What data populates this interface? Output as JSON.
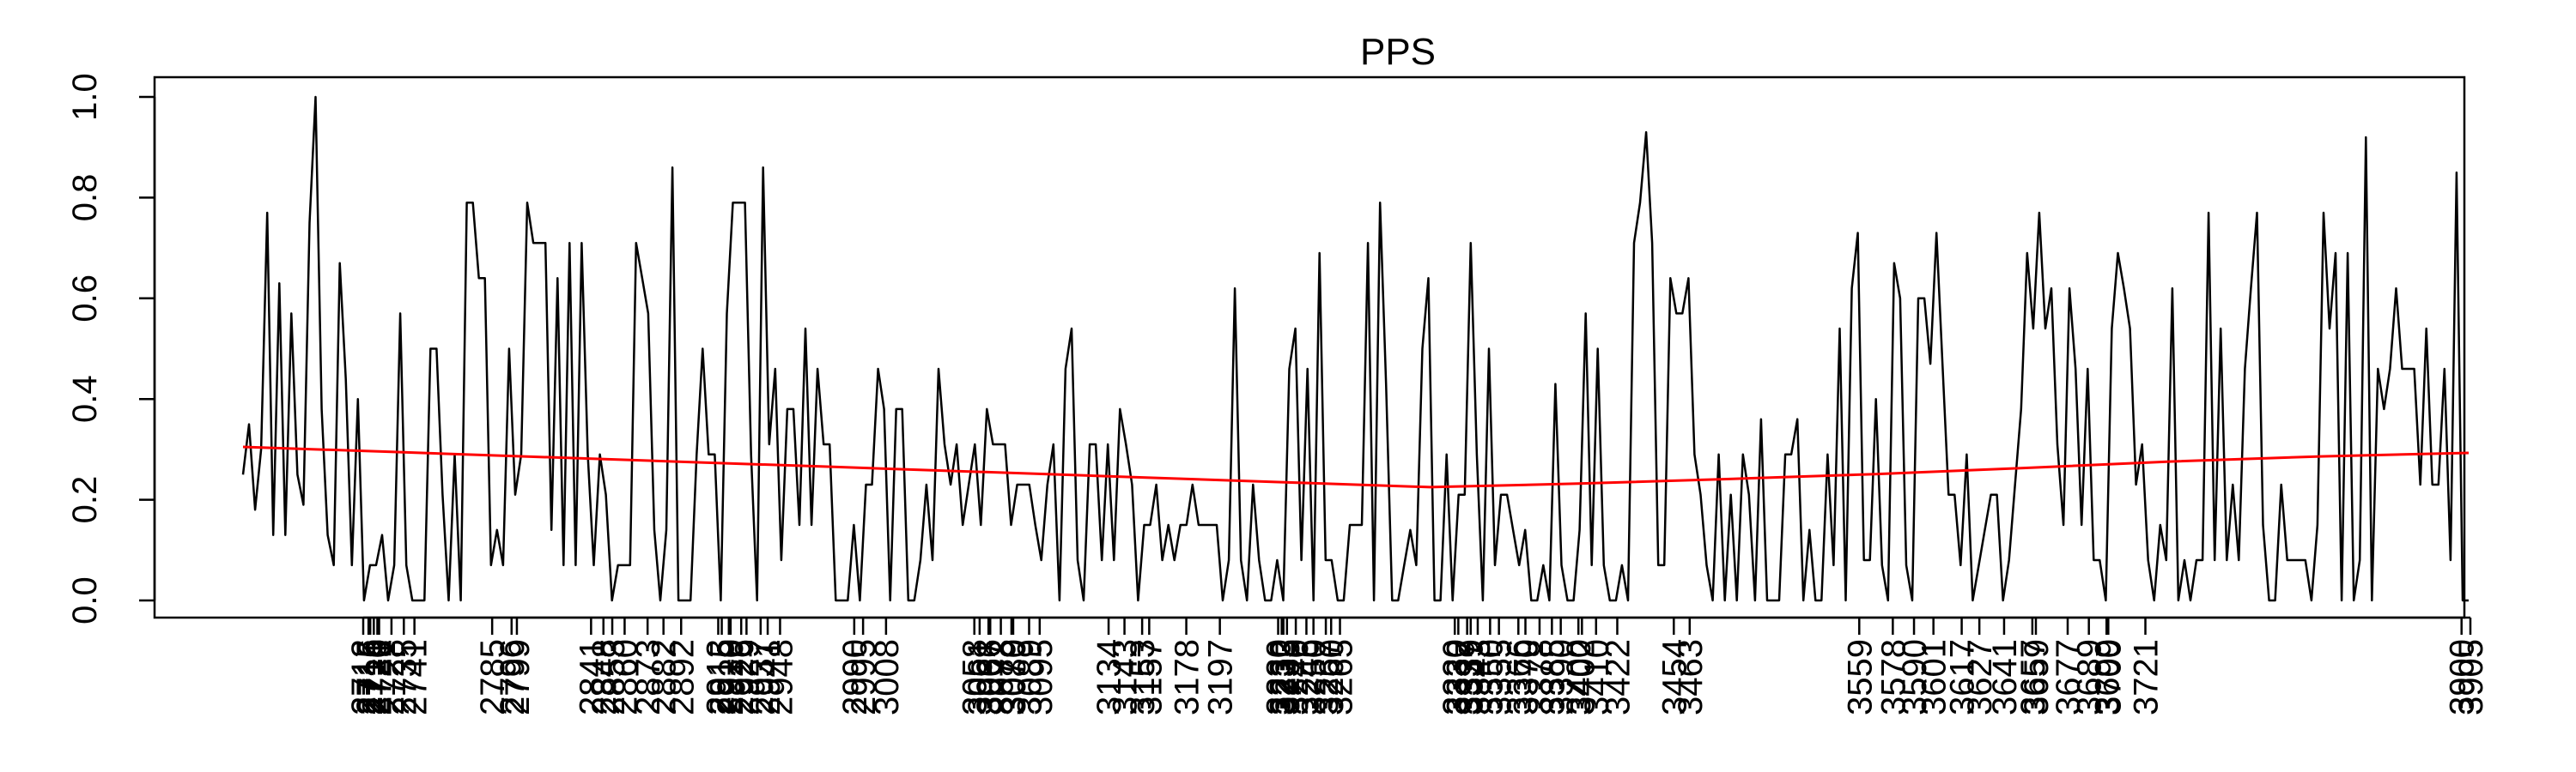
{
  "chart_data": {
    "type": "line",
    "title": "PPS",
    "xlabel": "",
    "ylabel": "",
    "ylim": [
      0,
      1
    ],
    "y_ticks": [
      "0.0",
      "0.2",
      "0.4",
      "0.6",
      "0.8",
      "1.0"
    ],
    "grid": false,
    "legend": "none",
    "colors": {
      "series": "#000000",
      "trend": "#ff0000"
    },
    "x_tick_labels": [
      "2712",
      "2715",
      "2716",
      "2718",
      "2720",
      "2721",
      "2728",
      "2735",
      "2741",
      "2785",
      "2796",
      "2799",
      "2841",
      "2848",
      "2853",
      "2860",
      "2873",
      "2882",
      "2892",
      "2913",
      "2915",
      "2919",
      "2920",
      "2926",
      "2929",
      "2937",
      "2941",
      "2948",
      "2990",
      "2995",
      "3008",
      "3058",
      "3061",
      "3066",
      "3067",
      "3073",
      "3079",
      "3080",
      "3089",
      "3095",
      "3134",
      "3143",
      "3153",
      "3157",
      "3178",
      "3197",
      "3230",
      "3232",
      "3233",
      "3235",
      "3240",
      "3246",
      "3250",
      "3257",
      "3260",
      "3265",
      "3330",
      "3332",
      "3337",
      "3339",
      "3343",
      "3350",
      "3355",
      "3366",
      "3370",
      "3378",
      "3385",
      "3390",
      "3400",
      "3402",
      "3410",
      "3422",
      "3454",
      "3463",
      "3559",
      "3578",
      "3590",
      "3601",
      "3617",
      "3627",
      "3641",
      "3657",
      "3659",
      "3677",
      "3689",
      "3699",
      "3700",
      "3721",
      "3900",
      "3905"
    ],
    "series": [
      {
        "values": [
          0.25,
          0.35,
          0.18,
          0.3,
          0.77,
          0.13,
          0.63,
          0.13,
          0.57,
          0.25,
          0.19,
          0.75,
          1.0,
          0.38,
          0.13,
          0.07,
          0.67,
          0.44,
          0.07,
          0.4,
          0.0,
          0.07,
          0.07,
          0.13,
          0.0,
          0.07,
          0.57,
          0.07,
          0.0,
          0.0,
          0.0,
          0.5,
          0.5,
          0.21,
          0.0,
          0.29,
          0.0,
          0.79,
          0.79,
          0.64,
          0.64,
          0.07,
          0.14,
          0.07,
          0.5,
          0.21,
          0.29,
          0.79,
          0.71,
          0.71,
          0.71,
          0.14,
          0.64,
          0.07,
          0.71,
          0.07,
          0.71,
          0.29,
          0.07,
          0.29,
          0.21,
          0.0,
          0.07,
          0.07,
          0.07,
          0.71,
          0.64,
          0.57,
          0.14,
          0.0,
          0.14,
          0.86,
          0.0,
          0.0,
          0.0,
          0.29,
          0.5,
          0.29,
          0.29,
          0.0,
          0.57,
          0.79,
          0.79,
          0.79,
          0.29,
          0.0,
          0.86,
          0.31,
          0.46,
          0.08,
          0.38,
          0.38,
          0.15,
          0.54,
          0.15,
          0.46,
          0.31,
          0.31,
          0.0,
          0.0,
          0.0,
          0.15,
          0.0,
          0.23,
          0.23,
          0.46,
          0.38,
          0.0,
          0.38,
          0.38,
          0.0,
          0.0,
          0.08,
          0.23,
          0.08,
          0.46,
          0.31,
          0.23,
          0.31,
          0.15,
          0.23,
          0.31,
          0.15,
          0.38,
          0.31,
          0.31,
          0.31,
          0.15,
          0.23,
          0.23,
          0.23,
          0.15,
          0.08,
          0.23,
          0.31,
          0.0,
          0.46,
          0.54,
          0.08,
          0.0,
          0.31,
          0.31,
          0.08,
          0.31,
          0.08,
          0.38,
          0.31,
          0.23,
          0.0,
          0.15,
          0.15,
          0.23,
          0.08,
          0.15,
          0.08,
          0.15,
          0.15,
          0.23,
          0.15,
          0.15,
          0.15,
          0.15,
          0.0,
          0.08,
          0.62,
          0.08,
          0.0,
          0.23,
          0.08,
          0.0,
          0.0,
          0.08,
          0.0,
          0.46,
          0.54,
          0.08,
          0.46,
          0.0,
          0.69,
          0.08,
          0.08,
          0.0,
          0.0,
          0.15,
          0.15,
          0.15,
          0.71,
          0.0,
          0.79,
          0.43,
          0.0,
          0.0,
          0.07,
          0.14,
          0.07,
          0.5,
          0.64,
          0.0,
          0.0,
          0.29,
          0.0,
          0.21,
          0.21,
          0.71,
          0.29,
          0.0,
          0.5,
          0.07,
          0.21,
          0.21,
          0.14,
          0.07,
          0.14,
          0.0,
          0.0,
          0.07,
          0.0,
          0.43,
          0.07,
          0.0,
          0.0,
          0.14,
          0.57,
          0.07,
          0.5,
          0.07,
          0.0,
          0.0,
          0.07,
          0.0,
          0.71,
          0.79,
          0.93,
          0.71,
          0.07,
          0.07,
          0.64,
          0.57,
          0.57,
          0.64,
          0.29,
          0.21,
          0.07,
          0.0,
          0.29,
          0.0,
          0.21,
          0.0,
          0.29,
          0.21,
          0.0,
          0.36,
          0.0,
          0.0,
          0.0,
          0.29,
          0.29,
          0.36,
          0.0,
          0.14,
          0.0,
          0.0,
          0.29,
          0.07,
          0.54,
          0.0,
          0.62,
          0.73,
          0.08,
          0.08,
          0.4,
          0.07,
          0.0,
          0.67,
          0.6,
          0.07,
          0.0,
          0.6,
          0.6,
          0.47,
          0.73,
          0.47,
          0.21,
          0.21,
          0.07,
          0.29,
          0.0,
          0.07,
          0.14,
          0.21,
          0.21,
          0.0,
          0.08,
          0.23,
          0.38,
          0.69,
          0.54,
          0.77,
          0.54,
          0.62,
          0.31,
          0.15,
          0.62,
          0.46,
          0.15,
          0.46,
          0.08,
          0.08,
          0.0,
          0.54,
          0.69,
          0.62,
          0.54,
          0.23,
          0.31,
          0.08,
          0.0,
          0.15,
          0.08,
          0.62,
          0.0,
          0.08,
          0.0,
          0.08,
          0.08,
          0.77,
          0.08,
          0.54,
          0.08,
          0.23,
          0.08,
          0.46,
          0.62,
          0.77,
          0.15,
          0.0,
          0.0,
          0.23,
          0.08,
          0.08,
          0.08,
          0.08,
          0.0,
          0.15,
          0.77,
          0.54,
          0.69,
          0.0,
          0.69,
          0.0,
          0.08,
          0.92,
          0.0,
          0.46,
          0.38,
          0.46,
          0.62,
          0.46,
          0.46,
          0.46,
          0.23,
          0.54,
          0.23,
          0.23,
          0.46,
          0.08,
          0.85,
          0.0,
          0.0
        ]
      },
      {
        "values": [
          0.305,
          0.295,
          0.285,
          0.275,
          0.265,
          0.255,
          0.245,
          0.235,
          0.225,
          0.232,
          0.241,
          0.251,
          0.263,
          0.276,
          0.286,
          0.293
        ]
      }
    ]
  }
}
